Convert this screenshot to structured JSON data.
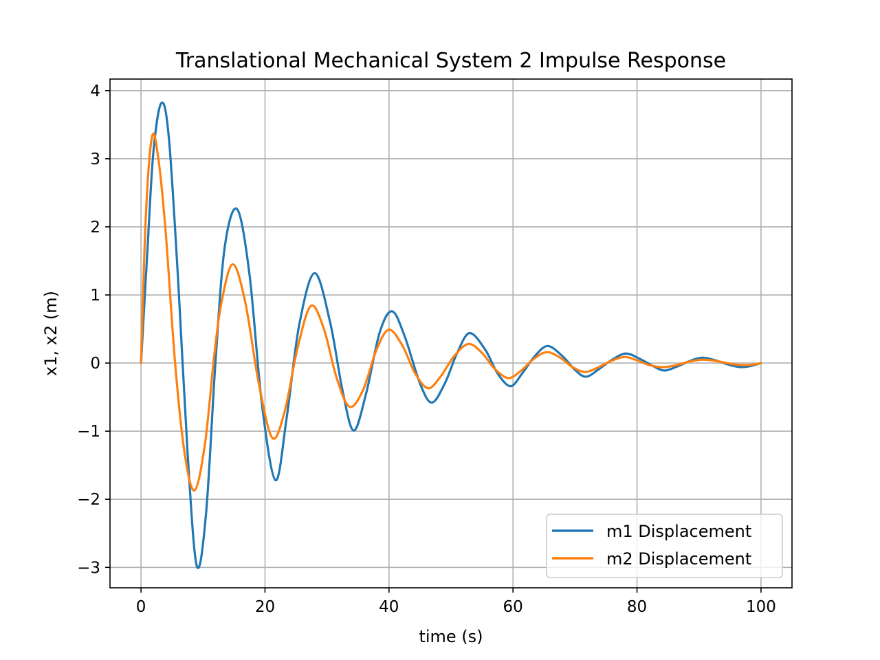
{
  "chart_data": {
    "type": "line",
    "title": "Translational Mechanical System 2 Impulse Response",
    "xlabel": "time (s)",
    "ylabel": "x1, x2 (m)",
    "xlim": [
      -5,
      105
    ],
    "ylim": [
      -3.3,
      4.17
    ],
    "xticks": [
      0,
      20,
      40,
      60,
      80,
      100
    ],
    "xtick_labels": [
      "0",
      "20",
      "40",
      "60",
      "80",
      "100"
    ],
    "yticks": [
      -3,
      -2,
      -1,
      0,
      1,
      2,
      3,
      4
    ],
    "ytick_labels": [
      "−3",
      "−2",
      "−1",
      "0",
      "1",
      "2",
      "3",
      "4"
    ],
    "grid": true,
    "legend_position": "lower-right",
    "series": [
      {
        "name": "m1 Displacement",
        "color": "#1f77b4",
        "x": [
          0,
          1,
          2,
          3.3,
          4.5,
          6,
          7.5,
          9,
          10.5,
          12,
          13.5,
          15.5,
          17.5,
          19.5,
          21.7,
          23.5,
          25.5,
          28,
          30.5,
          32.5,
          34.3,
          36.3,
          38.5,
          40.5,
          42.5,
          45,
          46.9,
          49,
          51,
          53,
          55.5,
          57.5,
          59.6,
          61.5,
          63.5,
          65.6,
          68,
          70,
          71.8,
          74,
          76,
          78.2,
          80.5,
          82.5,
          84.4,
          86.5,
          88.5,
          90.6,
          93,
          95,
          96.8,
          98.5,
          100
        ],
        "values": [
          0,
          1.6,
          3.1,
          3.82,
          3.3,
          1.2,
          -1.3,
          -2.98,
          -2.2,
          0,
          1.7,
          2.26,
          1.3,
          -0.6,
          -1.72,
          -0.8,
          0.55,
          1.32,
          0.6,
          -0.4,
          -0.99,
          -0.45,
          0.45,
          0.76,
          0.4,
          -0.3,
          -0.58,
          -0.3,
          0.15,
          0.44,
          0.2,
          -0.15,
          -0.34,
          -0.15,
          0.1,
          0.25,
          0.1,
          -0.1,
          -0.2,
          -0.08,
          0.05,
          0.14,
          0.06,
          -0.04,
          -0.11,
          -0.05,
          0.03,
          0.08,
          0.03,
          -0.03,
          -0.06,
          -0.04,
          0
        ]
      },
      {
        "name": "m2 Displacement",
        "color": "#ff7f0e",
        "x": [
          0,
          0.8,
          1.8,
          2.8,
          4,
          5.5,
          7,
          8.6,
          10.3,
          11.8,
          13,
          14.8,
          16.8,
          19,
          21.2,
          23.2,
          25.2,
          27.4,
          29.5,
          31.5,
          33.6,
          35.8,
          38,
          40,
          42.2,
          44.2,
          46.3,
          48.3,
          50.5,
          52.8,
          55,
          57,
          59.2,
          61.2,
          63.2,
          65.4,
          67.6,
          69.6,
          71.6,
          73.6,
          75.8,
          78,
          80,
          82,
          84.2,
          86.4,
          88.4,
          90.6,
          92.8,
          95,
          97,
          99,
          100
        ],
        "values": [
          0,
          2.2,
          3.33,
          3.0,
          1.9,
          0,
          -1.3,
          -1.87,
          -1.2,
          0.1,
          0.9,
          1.45,
          0.9,
          -0.3,
          -1.1,
          -0.7,
          0.2,
          0.84,
          0.5,
          -0.2,
          -0.64,
          -0.4,
          0.2,
          0.49,
          0.25,
          -0.15,
          -0.37,
          -0.2,
          0.1,
          0.28,
          0.15,
          -0.08,
          -0.22,
          -0.12,
          0.05,
          0.16,
          0.08,
          -0.06,
          -0.13,
          -0.07,
          0.03,
          0.09,
          0.04,
          -0.03,
          -0.06,
          -0.03,
          0.02,
          0.05,
          0.03,
          -0.01,
          -0.03,
          -0.02,
          0
        ]
      }
    ]
  }
}
